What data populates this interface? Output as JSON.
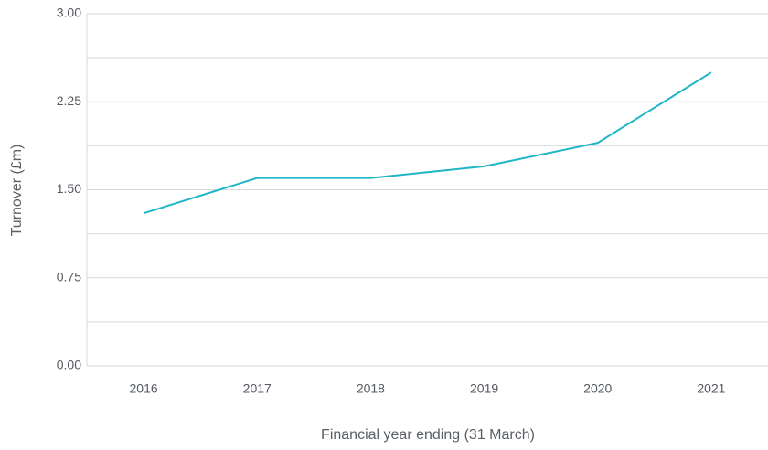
{
  "chart_data": {
    "type": "line",
    "x_label": "Financial year ending (31 March)",
    "y_label": "Turnover (£m)",
    "categories": [
      "2016",
      "2017",
      "2018",
      "2019",
      "2020",
      "2021"
    ],
    "series": [
      {
        "name": "Turnover",
        "color": "#1fb6c6",
        "values": [
          1.3,
          1.6,
          1.6,
          1.7,
          1.9,
          2.5
        ]
      }
    ],
    "ylim": [
      0,
      3
    ],
    "yticks": [
      {
        "value": 0,
        "label": "0.00"
      },
      {
        "value": 0.75,
        "label": "0.75"
      },
      {
        "value": 1.5,
        "label": "1.50"
      },
      {
        "value": 2.25,
        "label": "2.25"
      },
      {
        "value": 3,
        "label": "3.00"
      }
    ],
    "minor_yticks": [
      0.375,
      1.125,
      1.875,
      2.625
    ],
    "grid": true
  }
}
